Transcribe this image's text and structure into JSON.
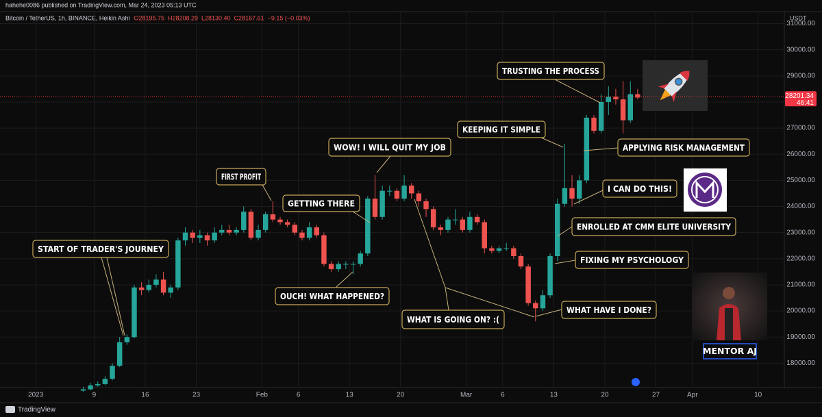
{
  "header": {
    "publisher": "hahehe0086 published on TradingView.com, Mar 24, 2023 05:13 UTC",
    "symbol": "Bitcoin / TetherUS, 1h, BINANCE, Heikin Ashi",
    "ohlc": [
      "O28195.75",
      "H28208.29",
      "L28130.40",
      "C28167.61",
      "−9.15 (−0.03%)"
    ]
  },
  "chart_data": {
    "type": "candlestick",
    "currency": "USDT",
    "up_color": "#26a69a",
    "down_color": "#ef5350",
    "x": [
      6,
      7,
      8,
      9,
      10,
      11,
      12,
      13,
      14,
      15,
      16,
      17,
      18,
      19,
      20,
      21,
      22,
      23,
      24,
      25,
      26,
      27,
      28,
      29,
      30,
      31,
      32,
      33,
      34,
      35,
      36,
      37,
      38,
      39,
      40,
      41,
      42,
      43,
      44,
      45,
      46,
      47,
      48,
      49,
      50,
      51,
      52,
      53,
      54,
      55,
      56,
      57,
      58,
      59,
      60,
      61,
      62,
      63,
      64,
      65,
      66,
      67,
      68,
      69,
      70,
      71,
      72,
      73,
      74,
      75,
      76,
      77,
      78,
      79,
      80,
      81,
      82
    ],
    "open": [
      16950,
      17000,
      17150,
      17200,
      17400,
      17900,
      18800,
      19000,
      20900,
      20800,
      21000,
      21200,
      20700,
      20900,
      22700,
      23000,
      22800,
      22900,
      22700,
      23000,
      23100,
      23000,
      23100,
      23800,
      22800,
      23100,
      23700,
      23500,
      23400,
      23300,
      23000,
      22800,
      23200,
      22900,
      21800,
      21600,
      21800,
      21800,
      21800,
      22200,
      24300,
      23600,
      24600,
      24600,
      24300,
      24800,
      24500,
      24200,
      23900,
      23200,
      23100,
      23500,
      23500,
      23100,
      23600,
      23400,
      22400,
      22300,
      22400,
      22400,
      22100,
      21700,
      20300,
      20100,
      20600,
      22100,
      24100,
      24700,
      24300,
      25000,
      27400,
      26900,
      28000,
      28200,
      28100,
      27300,
      28300
    ],
    "high": [
      17100,
      17250,
      17300,
      17500,
      18000,
      19000,
      19100,
      21000,
      21100,
      21200,
      21400,
      21500,
      21000,
      22800,
      23200,
      23100,
      23100,
      23000,
      23200,
      23300,
      23300,
      23200,
      24000,
      23900,
      23300,
      23800,
      24200,
      23600,
      23500,
      23400,
      23100,
      23400,
      23300,
      23000,
      21900,
      21900,
      21900,
      21900,
      22300,
      24400,
      25200,
      24800,
      24800,
      24700,
      25200,
      24900,
      24600,
      24300,
      24000,
      23300,
      23600,
      23900,
      23600,
      23800,
      23700,
      23500,
      22500,
      22500,
      22600,
      22500,
      22200,
      21800,
      20400,
      20800,
      22200,
      24300,
      26400,
      25200,
      25200,
      27500,
      27500,
      28300,
      28600,
      28500,
      28800,
      28800,
      28500
    ],
    "low": [
      16900,
      16950,
      17100,
      17150,
      17350,
      17850,
      18700,
      18950,
      20600,
      20700,
      20900,
      20600,
      20500,
      20800,
      22500,
      22600,
      22600,
      22500,
      22600,
      22900,
      22900,
      22900,
      23000,
      22700,
      22700,
      23000,
      23400,
      23300,
      23200,
      22900,
      22700,
      22700,
      22800,
      21700,
      21500,
      21500,
      21600,
      21400,
      21700,
      22100,
      23500,
      23500,
      24400,
      24200,
      24200,
      24300,
      24000,
      23600,
      23100,
      22900,
      23000,
      23300,
      23000,
      23000,
      23300,
      22200,
      22200,
      22200,
      22300,
      22000,
      21600,
      20200,
      19600,
      20000,
      20500,
      21900,
      24000,
      24000,
      24100,
      24900,
      26800,
      26800,
      27500,
      27900,
      26800,
      27200,
      28100
    ],
    "close": [
      17000,
      17150,
      17200,
      17400,
      17900,
      18800,
      19000,
      20900,
      20800,
      21000,
      21200,
      20700,
      20900,
      22700,
      23000,
      22800,
      22900,
      22700,
      23000,
      23100,
      23000,
      23100,
      23800,
      22800,
      23100,
      23700,
      23500,
      23400,
      23300,
      23000,
      22800,
      23200,
      22900,
      21800,
      21600,
      21800,
      21800,
      21800,
      22200,
      24300,
      23600,
      24600,
      24600,
      24300,
      24800,
      24500,
      24200,
      23900,
      23200,
      23100,
      23500,
      23500,
      23100,
      23600,
      23400,
      22400,
      22300,
      22400,
      22400,
      22100,
      21700,
      20300,
      20100,
      20600,
      22100,
      24100,
      24700,
      24300,
      25000,
      27400,
      26900,
      28000,
      28200,
      28100,
      27300,
      28300,
      28170
    ],
    "xlim": [
      -4.9,
      102.6
    ],
    "xticks": [
      {
        "value": 0,
        "label": "2023"
      },
      {
        "value": 8,
        "label": "9"
      },
      {
        "value": 15,
        "label": "16"
      },
      {
        "value": 22,
        "label": "23"
      },
      {
        "value": 31,
        "label": "Feb"
      },
      {
        "value": 36,
        "label": "6"
      },
      {
        "value": 43,
        "label": "13"
      },
      {
        "value": 50,
        "label": "20"
      },
      {
        "value": 59,
        "label": "Mar"
      },
      {
        "value": 64,
        "label": "6"
      },
      {
        "value": 71,
        "label": "13"
      },
      {
        "value": 78,
        "label": "20"
      },
      {
        "value": 85,
        "label": "27"
      },
      {
        "value": 90,
        "label": "Apr"
      },
      {
        "value": 99,
        "label": "10"
      }
    ],
    "ylim": [
      17250,
      31250
    ],
    "yticks": [
      {
        "value": 18000,
        "label": "18000.00"
      },
      {
        "value": 19000,
        "label": "19000.00"
      },
      {
        "value": 20000,
        "label": "20000.00"
      },
      {
        "value": 21000,
        "label": "21000.00"
      },
      {
        "value": 22000,
        "label": "22000.00"
      },
      {
        "value": 23000,
        "label": "23000.00"
      },
      {
        "value": 24000,
        "label": "24000.00"
      },
      {
        "value": 25000,
        "label": "25000.00"
      },
      {
        "value": 26000,
        "label": "26000.00"
      },
      {
        "value": 27000,
        "label": "27000.00"
      },
      {
        "value": 28000,
        "label": "28000.00"
      },
      {
        "value": 29000,
        "label": "29000.00"
      },
      {
        "value": 30000,
        "label": "30000.00"
      },
      {
        "value": 31000,
        "label": "31000.00"
      }
    ],
    "grid": true,
    "last_price": 28201.34,
    "countdown": "46:41",
    "annotations": [
      "START OF TRADER'S JOURNEY",
      "FIRST PROFIT",
      "GETTING THERE",
      "OUCH! WHAT HAPPENED?",
      "WOW! I WILL QUIT MY JOB",
      "WHAT IS GOING ON? :(",
      "WHAT HAVE I DONE?",
      "KEEPING IT SIMPLE",
      "TRUSTING THE PROCESS",
      "APPLYING RISK MANAGEMENT",
      "I CAN DO THIS!",
      "ENROLLED AT CMM ELITE UNIVERSITY",
      "FIXING MY PSYCHOLOGY"
    ],
    "mentor": "MENTOR AJ"
  },
  "footer": {
    "brand": "TradingView"
  }
}
